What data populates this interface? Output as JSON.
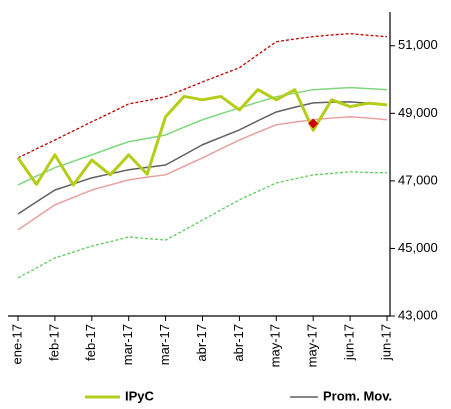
{
  "chart_data": {
    "type": "line",
    "x": [
      0,
      1,
      2,
      3,
      4,
      5,
      6,
      7,
      8,
      9,
      10,
      11,
      12,
      13,
      14,
      15,
      16,
      17,
      18,
      19,
      20
    ],
    "xlim": [
      0,
      20
    ],
    "xticks": [
      {
        "value": 0,
        "label": "ene-17"
      },
      {
        "value": 2,
        "label": "feb-17"
      },
      {
        "value": 4,
        "label": "feb-17"
      },
      {
        "value": 6,
        "label": "mar-17"
      },
      {
        "value": 8,
        "label": "mar-17"
      },
      {
        "value": 10,
        "label": "abr-17"
      },
      {
        "value": 12,
        "label": "abr-17"
      },
      {
        "value": 14,
        "label": "may-17"
      },
      {
        "value": 16,
        "label": "may-17"
      },
      {
        "value": 18,
        "label": "jun-17"
      },
      {
        "value": 20,
        "label": "jun-17"
      }
    ],
    "ylim": [
      43000,
      52000
    ],
    "yticks": [
      {
        "value": 43000,
        "label": "43,000"
      },
      {
        "value": 45000,
        "label": "45,000"
      },
      {
        "value": 47000,
        "label": "47,000"
      },
      {
        "value": 49000,
        "label": "49,000"
      },
      {
        "value": 51000,
        "label": "51,000"
      }
    ],
    "series": [
      {
        "color": "#c00000",
        "dashed": true,
        "width": 1.3,
        "values": [
          47680,
          47950,
          48210,
          48480,
          48750,
          49010,
          49280,
          49380,
          49490,
          49710,
          49930,
          50140,
          50350,
          50740,
          51120,
          51200,
          51270,
          51320,
          51360,
          51310,
          51270
        ]
      },
      {
        "color": "#5ccc5c",
        "dashed": true,
        "width": 1.3,
        "values": [
          44130,
          44420,
          44720,
          44890,
          45070,
          45200,
          45340,
          45290,
          45250,
          45540,
          45840,
          46140,
          46440,
          46690,
          46940,
          47060,
          47180,
          47220,
          47270,
          47250,
          47240
        ]
      },
      {
        "color": "#7ed87e",
        "width": 1.5,
        "values": [
          46880,
          47140,
          47390,
          47580,
          47770,
          47970,
          48160,
          48260,
          48360,
          48590,
          48810,
          48990,
          49160,
          49330,
          49490,
          49600,
          49700,
          49730,
          49760,
          49730,
          49700
        ]
      },
      {
        "color": "#e8a0a0",
        "width": 1.5,
        "values": [
          45550,
          45920,
          46290,
          46510,
          46730,
          46880,
          47030,
          47110,
          47180,
          47430,
          47680,
          47950,
          48210,
          48440,
          48660,
          48740,
          48810,
          48860,
          48900,
          48860,
          48810
        ]
      },
      {
        "name": "Prom. Mov.",
        "color": "#606060",
        "width": 1.5,
        "values": [
          46020,
          46380,
          46730,
          46910,
          47090,
          47210,
          47330,
          47400,
          47470,
          47770,
          48070,
          48290,
          48510,
          48780,
          49040,
          49180,
          49310,
          49330,
          49340,
          49300,
          49250
        ]
      },
      {
        "name": "IPyC",
        "color": "#b5cc18",
        "width": 3,
        "values": [
          47680,
          46900,
          47770,
          46880,
          47620,
          47180,
          47770,
          47200,
          48900,
          49500,
          49400,
          49500,
          49100,
          49700,
          49400,
          49700,
          48500,
          49400,
          49200,
          49300,
          49250
        ]
      }
    ],
    "marker": {
      "x": 16,
      "value": 48700,
      "color": "#d00000"
    }
  }
}
